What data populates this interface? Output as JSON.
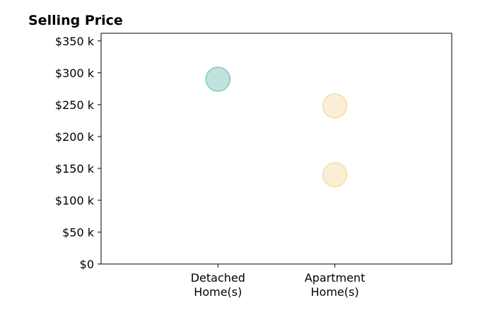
{
  "chart_data": {
    "type": "scatter",
    "title": "Selling Price",
    "xlabel": "",
    "ylabel": "",
    "categories": [
      [
        "Detached",
        "Home(s)"
      ],
      [
        "Apartment",
        "Home(s)"
      ]
    ],
    "y_ticks": [
      {
        "value": 0,
        "label": "$0"
      },
      {
        "value": 50000,
        "label": "$50 k"
      },
      {
        "value": 100000,
        "label": "$100 k"
      },
      {
        "value": 150000,
        "label": "$150 k"
      },
      {
        "value": 200000,
        "label": "$200 k"
      },
      {
        "value": 250000,
        "label": "$250 k"
      },
      {
        "value": 300000,
        "label": "$300 k"
      },
      {
        "value": 350000,
        "label": "$350 k"
      }
    ],
    "xlim": [
      -1,
      2
    ],
    "ylim": [
      0,
      362000
    ],
    "grid": false,
    "points": [
      {
        "category_index": 0,
        "y": 290000,
        "color": "#7fc8c0"
      },
      {
        "category_index": 1,
        "y": 248000,
        "color": "#f5ddae"
      },
      {
        "category_index": 1,
        "y": 140000,
        "color": "#f5ddae"
      }
    ]
  }
}
